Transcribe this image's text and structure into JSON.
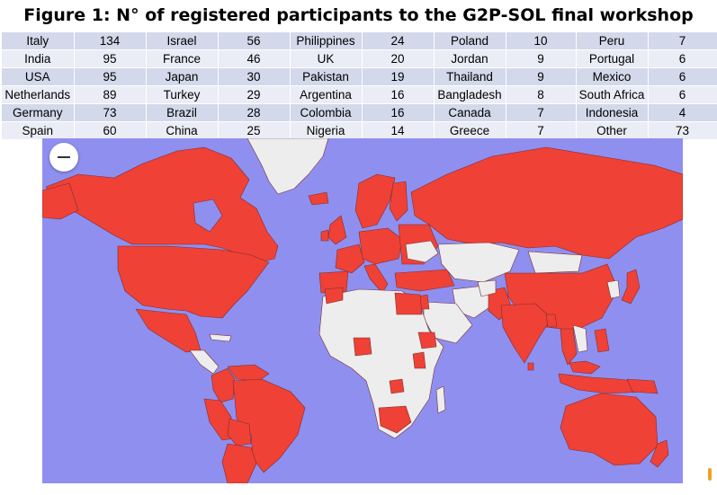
{
  "title": "Figure 1: N° of registered participants to the G2P-SOL final workshop",
  "table": [
    [
      [
        "Italy",
        "134"
      ],
      [
        "Israel",
        "56"
      ],
      [
        "Philippines",
        "24"
      ],
      [
        "Poland",
        "10"
      ],
      [
        "Peru",
        "7"
      ]
    ],
    [
      [
        "India",
        "95"
      ],
      [
        "France",
        "46"
      ],
      [
        "UK",
        "20"
      ],
      [
        "Jordan",
        "9"
      ],
      [
        "Portugal",
        "6"
      ]
    ],
    [
      [
        "USA",
        "95"
      ],
      [
        "Japan",
        "30"
      ],
      [
        "Pakistan",
        "19"
      ],
      [
        "Thailand",
        "9"
      ],
      [
        "Mexico",
        "6"
      ]
    ],
    [
      [
        "Netherlands",
        "89"
      ],
      [
        "Turkey",
        "29"
      ],
      [
        "Argentina",
        "16"
      ],
      [
        "Bangladesh",
        "8"
      ],
      [
        "South Africa",
        "6"
      ]
    ],
    [
      [
        "Germany",
        "73"
      ],
      [
        "Brazil",
        "28"
      ],
      [
        "Colombia",
        "16"
      ],
      [
        "Canada",
        "7"
      ],
      [
        "Indonesia",
        "4"
      ]
    ],
    [
      [
        "Spain",
        "60"
      ],
      [
        "China",
        "25"
      ],
      [
        "Nigeria",
        "14"
      ],
      [
        "Greece",
        "7"
      ],
      [
        "Other",
        "73"
      ]
    ]
  ],
  "map": {
    "ocean_color": "#8f8ff0",
    "highlight_color": "#ef4136",
    "other_land_color": "#ededed",
    "zoom_out_icon": "minus-icon"
  }
}
